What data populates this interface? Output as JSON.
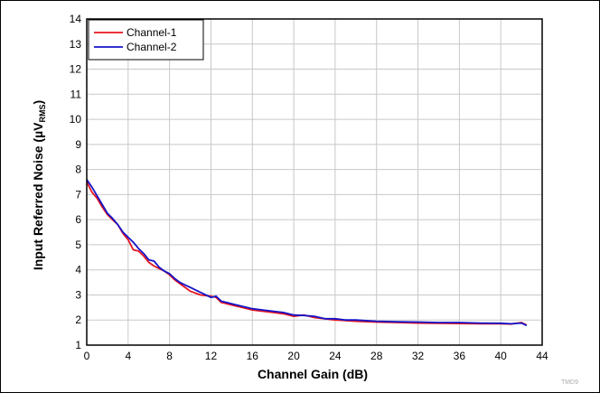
{
  "chart_data": {
    "type": "line",
    "xlabel": "Channel Gain (dB)",
    "ylabel": {
      "main": "Input Referred Noise (µV",
      "sub": "RMS",
      "close": ")"
    },
    "xlim": [
      0,
      44
    ],
    "ylim": [
      1,
      14
    ],
    "xticks": [
      0,
      4,
      8,
      12,
      16,
      20,
      24,
      28,
      32,
      36,
      40,
      44
    ],
    "yticks": [
      1,
      2,
      3,
      4,
      5,
      6,
      7,
      8,
      9,
      10,
      11,
      12,
      13,
      14
    ],
    "grid": true,
    "legend_position": "top-left",
    "series": [
      {
        "name": "Channel-1",
        "color": "#e8141e",
        "x": [
          0,
          0.5,
          1,
          1.5,
          2,
          2.5,
          3,
          3.5,
          4,
          4.5,
          5,
          5.5,
          6,
          6.5,
          7,
          7.5,
          8,
          8.5,
          9,
          9.5,
          10,
          11,
          12,
          12.5,
          13,
          14,
          15,
          16,
          17,
          18,
          19,
          20,
          21,
          22,
          23,
          24,
          25,
          26,
          28,
          30,
          32,
          34,
          36,
          38,
          40,
          41,
          42,
          42.5
        ],
        "y": [
          7.5,
          7.1,
          6.85,
          6.5,
          6.2,
          6.0,
          5.8,
          5.45,
          5.2,
          4.8,
          4.75,
          4.55,
          4.3,
          4.15,
          4.05,
          3.95,
          3.8,
          3.6,
          3.45,
          3.3,
          3.15,
          3.0,
          2.95,
          2.9,
          2.7,
          2.6,
          2.5,
          2.4,
          2.35,
          2.3,
          2.25,
          2.15,
          2.2,
          2.1,
          2.05,
          2.0,
          1.98,
          1.95,
          1.92,
          1.9,
          1.88,
          1.87,
          1.86,
          1.85,
          1.85,
          1.84,
          1.9,
          1.8
        ]
      },
      {
        "name": "Channel-2",
        "color": "#1414c8",
        "x": [
          0,
          0.5,
          1,
          1.5,
          2,
          2.5,
          3,
          3.5,
          4,
          4.5,
          5,
          5.5,
          6,
          6.5,
          7,
          7.5,
          8,
          8.5,
          9,
          9.5,
          10,
          11,
          12,
          12.5,
          13,
          14,
          15,
          16,
          17,
          18,
          19,
          20,
          21,
          22,
          23,
          24,
          25,
          26,
          28,
          30,
          32,
          34,
          36,
          38,
          40,
          41,
          42,
          42.5
        ],
        "y": [
          7.6,
          7.3,
          6.95,
          6.6,
          6.25,
          6.05,
          5.8,
          5.5,
          5.3,
          5.1,
          4.85,
          4.65,
          4.4,
          4.35,
          4.1,
          3.95,
          3.85,
          3.65,
          3.5,
          3.4,
          3.3,
          3.1,
          2.9,
          2.95,
          2.75,
          2.65,
          2.55,
          2.45,
          2.4,
          2.35,
          2.3,
          2.2,
          2.18,
          2.15,
          2.05,
          2.05,
          2.0,
          2.0,
          1.95,
          1.93,
          1.92,
          1.9,
          1.9,
          1.88,
          1.87,
          1.85,
          1.88,
          1.78
        ]
      }
    ],
    "tag": "TMD9"
  }
}
